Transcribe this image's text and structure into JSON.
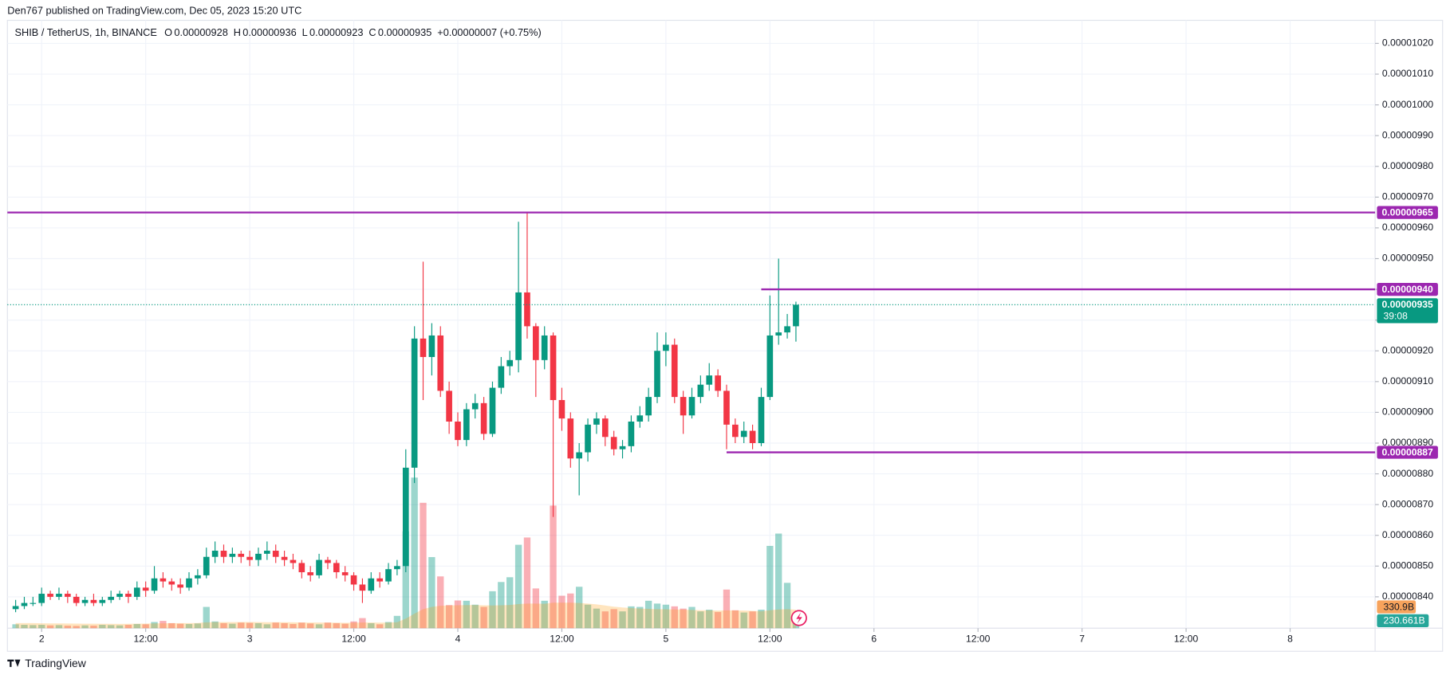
{
  "publisher": "Den767 published on TradingView.com, Dec 05, 2023 15:20 UTC",
  "footer": "TradingView",
  "chart_data": {
    "type": "candlestick",
    "title": "SHIB / TetherUS, 1h, BINANCE",
    "legend": [
      {
        "key": "O",
        "value": "0.00000928"
      },
      {
        "key": "H",
        "value": "0.00000936"
      },
      {
        "key": "L",
        "value": "0.00000923"
      },
      {
        "key": "C",
        "value": "0.00000935"
      }
    ],
    "change": "+0.00000007 (+0.75%)",
    "up_color": "#089981",
    "down_color": "#f23645",
    "level_color": "#9c27b0",
    "volume_ma_color": "#ff9800",
    "grid": true,
    "xlim": [
      -3.95,
      153.8
    ],
    "xticks": [
      {
        "value": 0,
        "label": "2"
      },
      {
        "value": 12,
        "label": "12:00"
      },
      {
        "value": 24,
        "label": "3"
      },
      {
        "value": 36,
        "label": "12:00"
      },
      {
        "value": 48,
        "label": "4"
      },
      {
        "value": 60,
        "label": "12:00"
      },
      {
        "value": 72,
        "label": "5"
      },
      {
        "value": 84,
        "label": "12:00"
      },
      {
        "value": 96,
        "label": "6"
      },
      {
        "value": 108,
        "label": "12:00"
      },
      {
        "value": 120,
        "label": "7"
      },
      {
        "value": 132,
        "label": "12:00"
      },
      {
        "value": 144,
        "label": "8"
      }
    ],
    "ylim": [
      8.298e-06,
      1.0275e-05
    ],
    "yticks": [
      {
        "value": 8.4e-06,
        "label": "0.00000840"
      },
      {
        "value": 8.5e-06,
        "label": "0.00000850"
      },
      {
        "value": 8.6e-06,
        "label": "0.00000860"
      },
      {
        "value": 8.7e-06,
        "label": "0.00000870"
      },
      {
        "value": 8.8e-06,
        "label": "0.00000880"
      },
      {
        "value": 8.9e-06,
        "label": "0.00000890"
      },
      {
        "value": 9e-06,
        "label": "0.00000900"
      },
      {
        "value": 9.1e-06,
        "label": "0.00000910"
      },
      {
        "value": 9.2e-06,
        "label": "0.00000920"
      },
      {
        "value": 9.3e-06,
        "label": "0.00000930"
      },
      {
        "value": 9.4e-06,
        "label": "0.00000940"
      },
      {
        "value": 9.5e-06,
        "label": "0.00000950"
      },
      {
        "value": 9.6e-06,
        "label": "0.00000960"
      },
      {
        "value": 9.7e-06,
        "label": "0.00000970"
      },
      {
        "value": 9.8e-06,
        "label": "0.00000980"
      },
      {
        "value": 9.9e-06,
        "label": "0.00000990"
      },
      {
        "value": 1e-05,
        "label": "0.00001000"
      },
      {
        "value": 1.01e-05,
        "label": "0.00001010"
      },
      {
        "value": 1.02e-05,
        "label": "0.00001020"
      }
    ],
    "x": [
      -3,
      -2,
      -1,
      0,
      1,
      2,
      3,
      4,
      5,
      6,
      7,
      8,
      9,
      10,
      11,
      12,
      13,
      14,
      15,
      16,
      17,
      18,
      19,
      20,
      21,
      22,
      23,
      24,
      25,
      26,
      27,
      28,
      29,
      30,
      31,
      32,
      33,
      34,
      35,
      36,
      37,
      38,
      39,
      40,
      41,
      42,
      43,
      44,
      45,
      46,
      47,
      48,
      49,
      50,
      51,
      52,
      53,
      54,
      55,
      56,
      57,
      58,
      59,
      60,
      61,
      62,
      63,
      64,
      65,
      66,
      67,
      68,
      69,
      70,
      71,
      72,
      73,
      74,
      75,
      76,
      77,
      78,
      79,
      80,
      81,
      82,
      83,
      84,
      85,
      86,
      87
    ],
    "open": [
      8.36e-06,
      8.37e-06,
      8.38e-06,
      8.38e-06,
      8.41e-06,
      8.4e-06,
      8.41e-06,
      8.4e-06,
      8.38e-06,
      8.39e-06,
      8.38e-06,
      8.39e-06,
      8.4e-06,
      8.41e-06,
      8.4e-06,
      8.43e-06,
      8.42e-06,
      8.46e-06,
      8.45e-06,
      8.44e-06,
      8.43e-06,
      8.46e-06,
      8.47e-06,
      8.53e-06,
      8.55e-06,
      8.53e-06,
      8.54e-06,
      8.53e-06,
      8.52e-06,
      8.54e-06,
      8.55e-06,
      8.53e-06,
      8.52e-06,
      8.51e-06,
      8.48e-06,
      8.47e-06,
      8.52e-06,
      8.51e-06,
      8.48e-06,
      8.47e-06,
      8.44e-06,
      8.42e-06,
      8.46e-06,
      8.45e-06,
      8.49e-06,
      8.5e-06,
      8.82e-06,
      9.24e-06,
      9.18e-06,
      9.25e-06,
      9.07e-06,
      8.97e-06,
      8.91e-06,
      9.01e-06,
      9.03e-06,
      8.93e-06,
      9.08e-06,
      9.15e-06,
      9.17e-06,
      9.39e-06,
      9.28e-06,
      9.17e-06,
      9.25e-06,
      9.04e-06,
      8.98e-06,
      8.85e-06,
      8.87e-06,
      8.96e-06,
      8.98e-06,
      8.92e-06,
      8.88e-06,
      8.89e-06,
      8.97e-06,
      8.99e-06,
      9.05e-06,
      9.2e-06,
      9.22e-06,
      9.05e-06,
      8.99e-06,
      9.05e-06,
      9.09e-06,
      9.12e-06,
      9.07e-06,
      8.96e-06,
      8.92e-06,
      8.94e-06,
      8.9e-06,
      9.05e-06,
      9.25e-06,
      9.26e-06,
      9.28e-06
    ],
    "high": [
      8.39e-06,
      8.4e-06,
      8.4e-06,
      8.43e-06,
      8.42e-06,
      8.43e-06,
      8.42e-06,
      8.41e-06,
      8.4e-06,
      8.41e-06,
      8.4e-06,
      8.42e-06,
      8.42e-06,
      8.42e-06,
      8.45e-06,
      8.45e-06,
      8.5e-06,
      8.48e-06,
      8.46e-06,
      8.46e-06,
      8.48e-06,
      8.49e-06,
      8.56e-06,
      8.58e-06,
      8.57e-06,
      8.56e-06,
      8.55e-06,
      8.55e-06,
      8.56e-06,
      8.58e-06,
      8.57e-06,
      8.55e-06,
      8.54e-06,
      8.52e-06,
      8.5e-06,
      8.54e-06,
      8.53e-06,
      8.52e-06,
      8.5e-06,
      8.48e-06,
      8.46e-06,
      8.48e-06,
      8.48e-06,
      8.51e-06,
      8.52e-06,
      8.88e-06,
      9.28e-06,
      9.49e-06,
      9.29e-06,
      9.28e-06,
      9.1e-06,
      9e-06,
      9.03e-06,
      9.06e-06,
      9.05e-06,
      9.1e-06,
      9.18e-06,
      9.2e-06,
      9.62e-06,
      9.65e-06,
      9.29e-06,
      9.28e-06,
      9.26e-06,
      9.08e-06,
      9e-06,
      8.9e-06,
      8.98e-06,
      9e-06,
      8.99e-06,
      8.94e-06,
      8.91e-06,
      8.99e-06,
      9.02e-06,
      9.08e-06,
      9.26e-06,
      9.26e-06,
      9.24e-06,
      9.07e-06,
      9.08e-06,
      9.12e-06,
      9.16e-06,
      9.14e-06,
      9.09e-06,
      8.98e-06,
      8.97e-06,
      8.96e-06,
      9.08e-06,
      9.38e-06,
      9.5e-06,
      9.32e-06,
      9.36e-06
    ],
    "low": [
      8.35e-06,
      8.36e-06,
      8.37e-06,
      8.37e-06,
      8.39e-06,
      8.39e-06,
      8.38e-06,
      8.37e-06,
      8.37e-06,
      8.37e-06,
      8.37e-06,
      8.38e-06,
      8.39e-06,
      8.38e-06,
      8.39e-06,
      8.4e-06,
      8.41e-06,
      8.43e-06,
      8.42e-06,
      8.41e-06,
      8.42e-06,
      8.44e-06,
      8.46e-06,
      8.51e-06,
      8.51e-06,
      8.51e-06,
      8.51e-06,
      8.5e-06,
      8.5e-06,
      8.52e-06,
      8.51e-06,
      8.5e-06,
      8.49e-06,
      8.46e-06,
      8.45e-06,
      8.46e-06,
      8.49e-06,
      8.46e-06,
      8.45e-06,
      8.42e-06,
      8.38e-06,
      8.41e-06,
      8.43e-06,
      8.44e-06,
      8.47e-06,
      8.48e-06,
      8.77e-06,
      9.04e-06,
      9.12e-06,
      9.05e-06,
      8.93e-06,
      8.89e-06,
      8.89e-06,
      8.98e-06,
      8.91e-06,
      8.92e-06,
      9.06e-06,
      9.12e-06,
      9.13e-06,
      9.24e-06,
      9.05e-06,
      9.14e-06,
      8.66e-06,
      8.94e-06,
      8.82e-06,
      8.73e-06,
      8.84e-06,
      8.93e-06,
      8.89e-06,
      8.86e-06,
      8.85e-06,
      8.87e-06,
      8.95e-06,
      8.97e-06,
      9.03e-06,
      9.15e-06,
      9.03e-06,
      8.93e-06,
      8.98e-06,
      9.03e-06,
      9.07e-06,
      9.05e-06,
      8.88e-06,
      8.9e-06,
      8.9e-06,
      8.88e-06,
      8.89e-06,
      9.04e-06,
      9.22e-06,
      9.24e-06,
      9.23e-06
    ],
    "close": [
      8.37e-06,
      8.38e-06,
      8.38e-06,
      8.41e-06,
      8.4e-06,
      8.41e-06,
      8.4e-06,
      8.38e-06,
      8.39e-06,
      8.38e-06,
      8.39e-06,
      8.4e-06,
      8.41e-06,
      8.4e-06,
      8.43e-06,
      8.42e-06,
      8.46e-06,
      8.45e-06,
      8.44e-06,
      8.43e-06,
      8.46e-06,
      8.47e-06,
      8.53e-06,
      8.55e-06,
      8.53e-06,
      8.54e-06,
      8.53e-06,
      8.52e-06,
      8.54e-06,
      8.55e-06,
      8.53e-06,
      8.52e-06,
      8.51e-06,
      8.48e-06,
      8.47e-06,
      8.52e-06,
      8.51e-06,
      8.48e-06,
      8.47e-06,
      8.44e-06,
      8.42e-06,
      8.46e-06,
      8.45e-06,
      8.49e-06,
      8.5e-06,
      8.82e-06,
      9.24e-06,
      9.18e-06,
      9.25e-06,
      9.07e-06,
      8.97e-06,
      8.91e-06,
      9.01e-06,
      9.03e-06,
      8.93e-06,
      9.08e-06,
      9.15e-06,
      9.17e-06,
      9.39e-06,
      9.28e-06,
      9.17e-06,
      9.25e-06,
      9.04e-06,
      8.98e-06,
      8.85e-06,
      8.87e-06,
      8.96e-06,
      8.98e-06,
      8.92e-06,
      8.88e-06,
      8.89e-06,
      8.97e-06,
      8.99e-06,
      9.05e-06,
      9.2e-06,
      9.22e-06,
      9.05e-06,
      8.99e-06,
      9.05e-06,
      9.09e-06,
      9.12e-06,
      9.07e-06,
      8.96e-06,
      8.92e-06,
      8.94e-06,
      8.9e-06,
      9.05e-06,
      9.25e-06,
      9.26e-06,
      9.28e-06,
      9.35e-06
    ],
    "volume": {
      "values": [
        70,
        60,
        55,
        60,
        50,
        55,
        45,
        40,
        50,
        45,
        60,
        55,
        50,
        60,
        75,
        70,
        110,
        130,
        90,
        80,
        75,
        85,
        380,
        120,
        90,
        80,
        100,
        95,
        90,
        70,
        100,
        90,
        75,
        100,
        85,
        70,
        100,
        90,
        80,
        120,
        180,
        90,
        70,
        110,
        220,
        1730,
        2690,
        2240,
        1270,
        925,
        413,
        495,
        490,
        420,
        380,
        660,
        825,
        910,
        1490,
        1620,
        710,
        490,
        2190,
        580,
        620,
        740,
        420,
        350,
        300,
        340,
        300,
        390,
        380,
        490,
        440,
        420,
        390,
        350,
        380,
        300,
        330,
        290,
        690,
        320,
        280,
        300,
        330,
        1470,
        1690,
        810,
        230.661
      ],
      "last_label": "230.661B"
    },
    "volume_ma": {
      "values": [
        90,
        90,
        90,
        88,
        86,
        85,
        84,
        82,
        80,
        80,
        79,
        78,
        77,
        78,
        80,
        82,
        85,
        88,
        89,
        90,
        90,
        92,
        105,
        108,
        108,
        108,
        110,
        110,
        108,
        106,
        106,
        106,
        105,
        102,
        101,
        101,
        100,
        98,
        96,
        98,
        102,
        102,
        100,
        100,
        106,
        170,
        260,
        340,
        380,
        400,
        405,
        410,
        412,
        412,
        410,
        405,
        410,
        415,
        430,
        440,
        440,
        436,
        455,
        455,
        455,
        450,
        440,
        425,
        405,
        385,
        370,
        360,
        350,
        345,
        340,
        338,
        335,
        330,
        325,
        320,
        318,
        315,
        318,
        316,
        314,
        310,
        300,
        320,
        335,
        340,
        330.9
      ],
      "last_label": "330.9B"
    },
    "levels": [
      {
        "value": 9.65e-06,
        "label": "0.00000965"
      },
      {
        "value": 9.4e-06,
        "label": "0.00000940",
        "from": 83
      },
      {
        "value": 8.87e-06,
        "label": "0.00000887",
        "from": 79
      }
    ],
    "last_price": {
      "value": 9.35e-06,
      "label": "0.00000935",
      "countdown": "39:08"
    }
  }
}
